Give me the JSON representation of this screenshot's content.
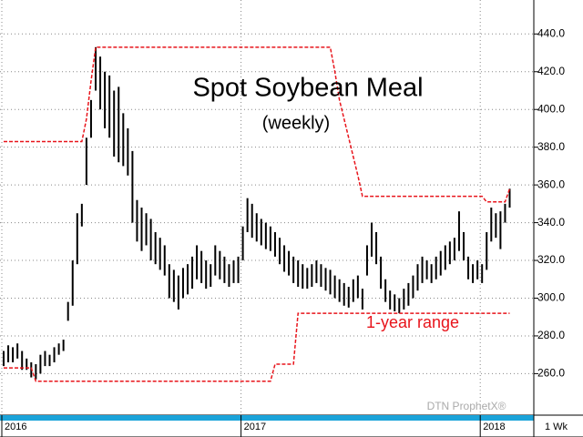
{
  "chart_data": {
    "type": "hilo",
    "title": "Spot Soybean Meal",
    "subtitle": "(weekly)",
    "annotation": "1-year range",
    "watermark": "DTN ProphetX®",
    "period": "1 Wk",
    "bar_color": "#000000",
    "range_color": "#e8141b",
    "grid": true,
    "ylim": [
      238,
      458
    ],
    "yticks": [
      {
        "value": 260,
        "label": "260.0"
      },
      {
        "value": 280,
        "label": "280.0"
      },
      {
        "value": 300,
        "label": "300.0"
      },
      {
        "value": 320,
        "label": "320.0"
      },
      {
        "value": 340,
        "label": "340.0"
      },
      {
        "value": 360,
        "label": "360.0"
      },
      {
        "value": 380,
        "label": "380.0"
      },
      {
        "value": 400,
        "label": "400.0"
      },
      {
        "value": 420,
        "label": "420.0"
      },
      {
        "value": 440,
        "label": "440.0"
      }
    ],
    "categories": [
      "2016",
      null,
      null,
      null,
      null,
      null,
      null,
      null,
      null,
      null,
      null,
      null,
      null,
      null,
      null,
      null,
      null,
      null,
      null,
      null,
      null,
      null,
      null,
      null,
      null,
      null,
      null,
      null,
      null,
      null,
      null,
      null,
      null,
      null,
      null,
      null,
      null,
      null,
      null,
      null,
      null,
      null,
      null,
      null,
      null,
      null,
      null,
      null,
      null,
      null,
      null,
      null,
      "2017",
      null,
      null,
      null,
      null,
      null,
      null,
      null,
      null,
      null,
      null,
      null,
      null,
      null,
      null,
      null,
      null,
      null,
      null,
      null,
      null,
      null,
      null,
      null,
      null,
      null,
      null,
      null,
      null,
      null,
      null,
      null,
      null,
      null,
      null,
      null,
      null,
      null,
      null,
      null,
      null,
      null,
      null,
      null,
      null,
      null,
      null,
      null,
      null,
      null,
      null,
      null,
      "2018",
      null,
      null,
      null,
      null,
      null,
      null
    ],
    "high": [
      272,
      275,
      274,
      276,
      272,
      268,
      266,
      265,
      270,
      272,
      270,
      274,
      276,
      278,
      298,
      320,
      345,
      350,
      385,
      405,
      433,
      428,
      420,
      418,
      410,
      412,
      398,
      390,
      378,
      352,
      348,
      345,
      342,
      335,
      332,
      328,
      318,
      315,
      312,
      316,
      318,
      322,
      328,
      325,
      320,
      318,
      328,
      325,
      322,
      318,
      320,
      322,
      338,
      353,
      350,
      345,
      342,
      340,
      338,
      335,
      332,
      328,
      325,
      322,
      320,
      318,
      316,
      318,
      320,
      318,
      316,
      315,
      312,
      310,
      308,
      306,
      310,
      312,
      305,
      328,
      340,
      335,
      322,
      310,
      304,
      302,
      300,
      305,
      308,
      312,
      318,
      322,
      320,
      318,
      322,
      325,
      328,
      330,
      332,
      346,
      335,
      322,
      318,
      320,
      318,
      335,
      348,
      345,
      346,
      350,
      358
    ],
    "low": [
      264,
      266,
      266,
      268,
      262,
      262,
      258,
      257,
      260,
      264,
      264,
      266,
      270,
      272,
      288,
      296,
      318,
      338,
      360,
      385,
      410,
      400,
      390,
      385,
      375,
      372,
      370,
      365,
      340,
      330,
      325,
      328,
      320,
      318,
      315,
      312,
      300,
      298,
      294,
      300,
      302,
      305,
      310,
      308,
      305,
      306,
      312,
      310,
      308,
      306,
      308,
      308,
      320,
      335,
      332,
      330,
      328,
      326,
      325,
      322,
      318,
      314,
      312,
      308,
      306,
      305,
      305,
      306,
      308,
      306,
      304,
      302,
      300,
      298,
      296,
      295,
      298,
      300,
      294,
      312,
      322,
      318,
      305,
      298,
      294,
      293,
      292,
      294,
      296,
      300,
      304,
      308,
      310,
      308,
      310,
      312,
      315,
      318,
      320,
      325,
      320,
      310,
      308,
      310,
      308,
      315,
      330,
      332,
      326,
      340,
      348
    ],
    "range_high": [
      383,
      383,
      383,
      383,
      383,
      383,
      383,
      383,
      383,
      383,
      383,
      383,
      383,
      383,
      383,
      383,
      383,
      383,
      395,
      415,
      433,
      433,
      433,
      433,
      433,
      433,
      433,
      433,
      433,
      433,
      433,
      433,
      433,
      433,
      433,
      433,
      433,
      433,
      433,
      433,
      433,
      433,
      433,
      433,
      433,
      433,
      433,
      433,
      433,
      433,
      433,
      433,
      433,
      433,
      433,
      433,
      433,
      433,
      433,
      433,
      433,
      433,
      433,
      433,
      433,
      433,
      433,
      433,
      433,
      433,
      433,
      433,
      420,
      405,
      395,
      385,
      375,
      365,
      354,
      354,
      354,
      354,
      354,
      354,
      354,
      354,
      354,
      354,
      354,
      354,
      354,
      354,
      354,
      354,
      354,
      354,
      354,
      354,
      354,
      354,
      354,
      354,
      354,
      354,
      354,
      351,
      351,
      351,
      351,
      351,
      358
    ],
    "range_low": [
      263,
      263,
      263,
      263,
      263,
      263,
      263,
      256,
      256,
      256,
      256,
      256,
      256,
      256,
      256,
      256,
      256,
      256,
      256,
      256,
      256,
      256,
      256,
      256,
      256,
      256,
      256,
      256,
      256,
      256,
      256,
      256,
      256,
      256,
      256,
      256,
      256,
      256,
      256,
      256,
      256,
      256,
      256,
      256,
      256,
      256,
      256,
      256,
      256,
      256,
      256,
      256,
      256,
      256,
      256,
      256,
      256,
      256,
      256,
      265,
      265,
      265,
      265,
      265,
      292,
      292,
      292,
      292,
      292,
      292,
      292,
      292,
      292,
      292,
      292,
      292,
      292,
      292,
      292,
      292,
      292,
      292,
      292,
      292,
      292,
      292,
      292,
      292,
      292,
      292,
      292,
      292,
      292,
      292,
      292,
      292,
      292,
      292,
      292,
      292,
      292,
      292,
      292,
      292,
      292,
      292,
      292,
      292,
      292,
      292,
      292
    ]
  }
}
